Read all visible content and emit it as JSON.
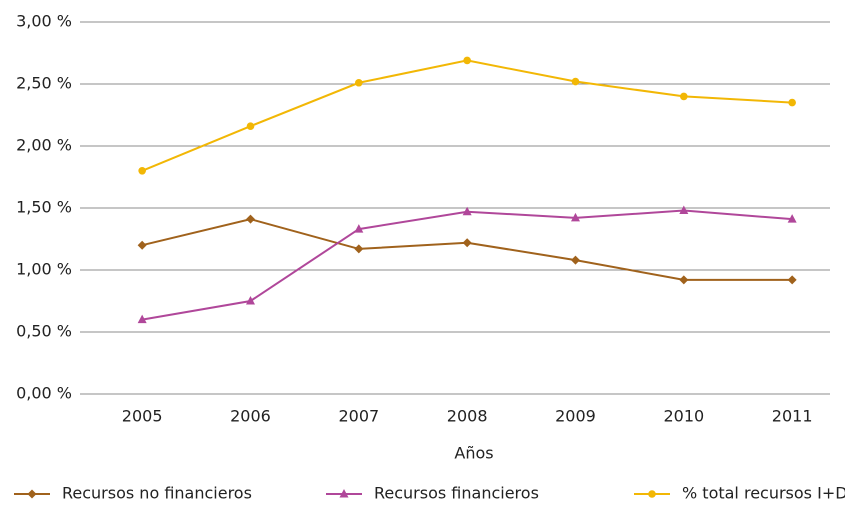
{
  "chart_data": {
    "type": "line",
    "x_label": "Años",
    "categories": [
      "2005",
      "2006",
      "2007",
      "2008",
      "2009",
      "2010",
      "2011"
    ],
    "series": [
      {
        "name": "Recursos no financieros",
        "color": "#a0621c",
        "marker": "diamond",
        "values": [
          1.2,
          1.41,
          1.17,
          1.22,
          1.08,
          0.92,
          0.92
        ]
      },
      {
        "name": "Recursos financieros",
        "color": "#b0479a",
        "marker": "triangle",
        "values": [
          0.6,
          0.75,
          1.33,
          1.47,
          1.42,
          1.48,
          1.41
        ]
      },
      {
        "name": "% total recursos I+D",
        "color": "#f2b705",
        "marker": "circle",
        "values": [
          1.8,
          2.16,
          2.51,
          2.69,
          2.52,
          2.4,
          2.35
        ]
      }
    ],
    "ylim": [
      0,
      3
    ],
    "yticks": [
      {
        "value": 0,
        "label": "0,00 %"
      },
      {
        "value": 0.5,
        "label": "0,50 %"
      },
      {
        "value": 1,
        "label": "1,00 %"
      },
      {
        "value": 1.5,
        "label": "1,50 %"
      },
      {
        "value": 2,
        "label": "2,00 %"
      },
      {
        "value": 2.5,
        "label": "2,50 %"
      },
      {
        "value": 3,
        "label": "3,00 %"
      }
    ],
    "grid": true,
    "legend": "bottom"
  }
}
